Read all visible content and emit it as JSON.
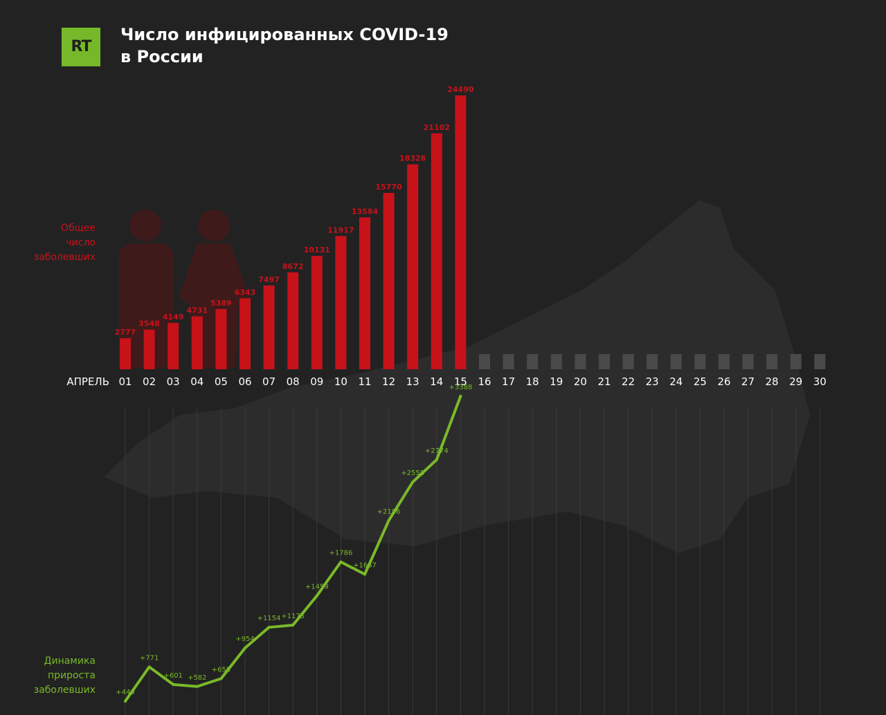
{
  "brand": {
    "logo_text": "RT",
    "logo_color": "#77b82a"
  },
  "title": {
    "line1": "Число инфицированных COVID-19",
    "line2": "в России"
  },
  "labels": {
    "bar_series_label": [
      "Общее",
      "число",
      "заболевших"
    ],
    "line_series_label": [
      "Динамика",
      "прироста",
      "заболевших"
    ]
  },
  "colors": {
    "bars": "#c8121a",
    "line": "#7ab929",
    "future_bars": "#4a4a4a",
    "background": "#222222"
  },
  "chart_data": [
    {
      "type": "bar",
      "x_axis_title": "АПРЕЛЬ",
      "categories": [
        "01",
        "02",
        "03",
        "04",
        "05",
        "06",
        "07",
        "08",
        "09",
        "10",
        "11",
        "12",
        "13",
        "14",
        "15",
        "16",
        "17",
        "18",
        "19",
        "20",
        "21",
        "22",
        "23",
        "24",
        "25",
        "26",
        "27",
        "28",
        "29",
        "30"
      ],
      "values": [
        2777,
        3548,
        4149,
        4731,
        5389,
        6343,
        7497,
        8672,
        10131,
        11917,
        13584,
        15770,
        18328,
        21102,
        24490,
        null,
        null,
        null,
        null,
        null,
        null,
        null,
        null,
        null,
        null,
        null,
        null,
        null,
        null,
        null
      ],
      "series_label": "Общее число заболевших",
      "data_labels": true,
      "grid": false
    },
    {
      "type": "line",
      "categories": [
        "01",
        "02",
        "03",
        "04",
        "05",
        "06",
        "07",
        "08",
        "09",
        "10",
        "11",
        "12",
        "13",
        "14",
        "15"
      ],
      "values": [
        440,
        771,
        601,
        582,
        658,
        954,
        1154,
        1175,
        1459,
        1786,
        1667,
        2186,
        2558,
        2774,
        3388
      ],
      "value_labels": [
        "+440",
        "+771",
        "+601",
        "+582",
        "+658",
        "+954",
        "+1154",
        "+1175",
        "+1459",
        "+1786",
        "+1667",
        "+2186",
        "+2558",
        "+2774",
        "+3388"
      ],
      "series_label": "Динамика прироста заболевших",
      "data_labels": true,
      "grid": "vertical"
    }
  ]
}
